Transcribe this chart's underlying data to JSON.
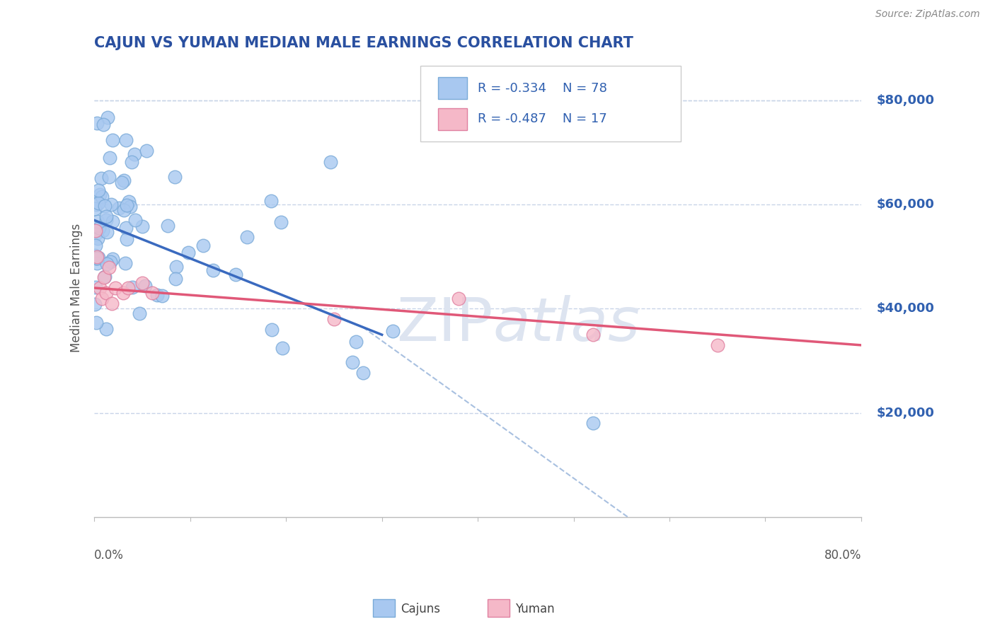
{
  "title": "CAJUN VS YUMAN MEDIAN MALE EARNINGS CORRELATION CHART",
  "source": "Source: ZipAtlas.com",
  "ylabel": "Median Male Earnings",
  "y_tick_labels": [
    "$20,000",
    "$40,000",
    "$60,000",
    "$80,000"
  ],
  "y_tick_values": [
    20000,
    40000,
    60000,
    80000
  ],
  "x_range": [
    0,
    0.8
  ],
  "y_range": [
    0,
    88000
  ],
  "cajun_R": -0.334,
  "cajun_N": 78,
  "yuman_R": -0.487,
  "yuman_N": 17,
  "cajun_color": "#a8c8f0",
  "cajun_edge_color": "#7aaad8",
  "yuman_color": "#f5b8c8",
  "yuman_edge_color": "#e080a0",
  "cajun_line_color": "#3a6abf",
  "yuman_line_color": "#e05878",
  "dashed_line_color": "#a8c0e0",
  "title_color": "#2a50a0",
  "source_color": "#888888",
  "watermark_color": "#dde4f0",
  "legend_text_color": "#3060b0",
  "background_color": "#ffffff",
  "grid_color": "#c8d4e8"
}
